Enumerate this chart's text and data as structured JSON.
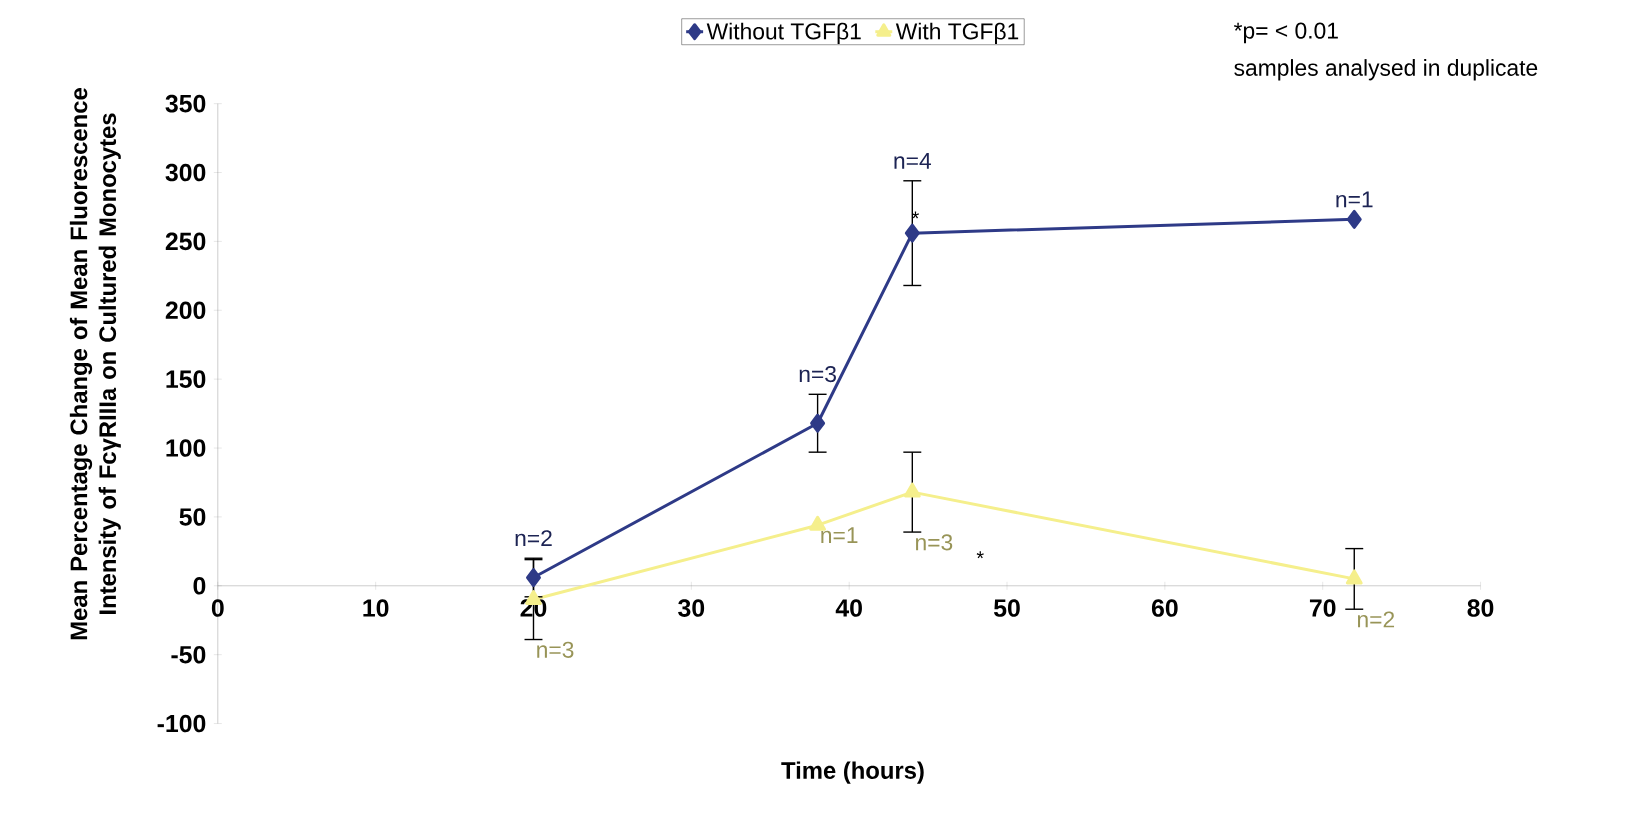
{
  "chart_data": {
    "type": "line",
    "x": [
      20,
      38,
      44,
      72
    ],
    "xlim": [
      0,
      80
    ],
    "ylim": [
      -100,
      350
    ],
    "xticks": [
      0,
      10,
      20,
      30,
      40,
      50,
      60,
      70,
      80
    ],
    "yticks": [
      -100,
      -50,
      0,
      50,
      100,
      150,
      200,
      250,
      300,
      350
    ],
    "xlabel": "Time (hours)",
    "ylabel": "Mean Percentage Change of Mean Fluorescence Intensity of FcγRIIIa on Cultured Monocytes",
    "legend": "top",
    "series": [
      {
        "name": "Without TGFβ1",
        "color": "#2e3a87",
        "marker": "diamond",
        "values": [
          6,
          118,
          256,
          266
        ],
        "errors": [
          14,
          21,
          38,
          null
        ]
      },
      {
        "name": "With TGFβ1",
        "color": "#f5ef8c",
        "marker": "triangle",
        "values": [
          -10,
          44,
          68,
          5
        ],
        "errors": [
          29,
          null,
          29,
          22
        ]
      }
    ],
    "annotations": [
      {
        "text": "n=2",
        "x": 20,
        "y": 6
      },
      {
        "text": "n=3",
        "x": 38,
        "y": 118
      },
      {
        "text": "n=4",
        "x": 44,
        "y": 256
      },
      {
        "text": "n=1",
        "x": 72,
        "y": 266
      },
      {
        "text": "n=3",
        "x": 20,
        "y": -10
      },
      {
        "text": "n=1",
        "x": 38,
        "y": 44
      },
      {
        "text": "n=3",
        "x": 44,
        "y": 68
      },
      {
        "text": "n=2",
        "x": 72,
        "y": 5
      },
      "*",
      "*",
      "*p= < 0.01",
      "samples analysed in duplicate"
    ]
  }
}
